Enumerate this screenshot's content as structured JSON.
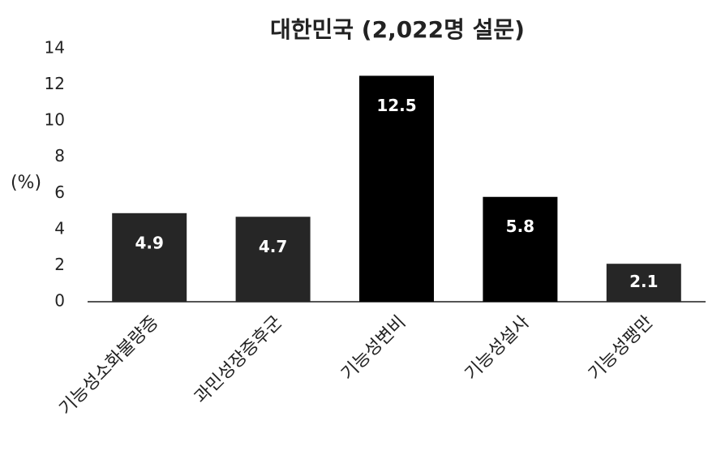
{
  "chart_data": {
    "type": "bar",
    "title": "대한민국 (2,022명 설문)",
    "y_label": "(%)",
    "categories": [
      "기능성소화불량증",
      "과민성장증후군",
      "기능성변비",
      "기능성설사",
      "기능성팽만"
    ],
    "values": [
      4.9,
      4.7,
      12.5,
      5.8,
      2.1
    ],
    "colors": [
      "#262626",
      "#262626",
      "#000000",
      "#000000",
      "#262626"
    ],
    "ylim": [
      0,
      14
    ],
    "yticks": [
      0,
      2,
      4,
      6,
      8,
      10,
      12,
      14
    ],
    "grid": false
  }
}
